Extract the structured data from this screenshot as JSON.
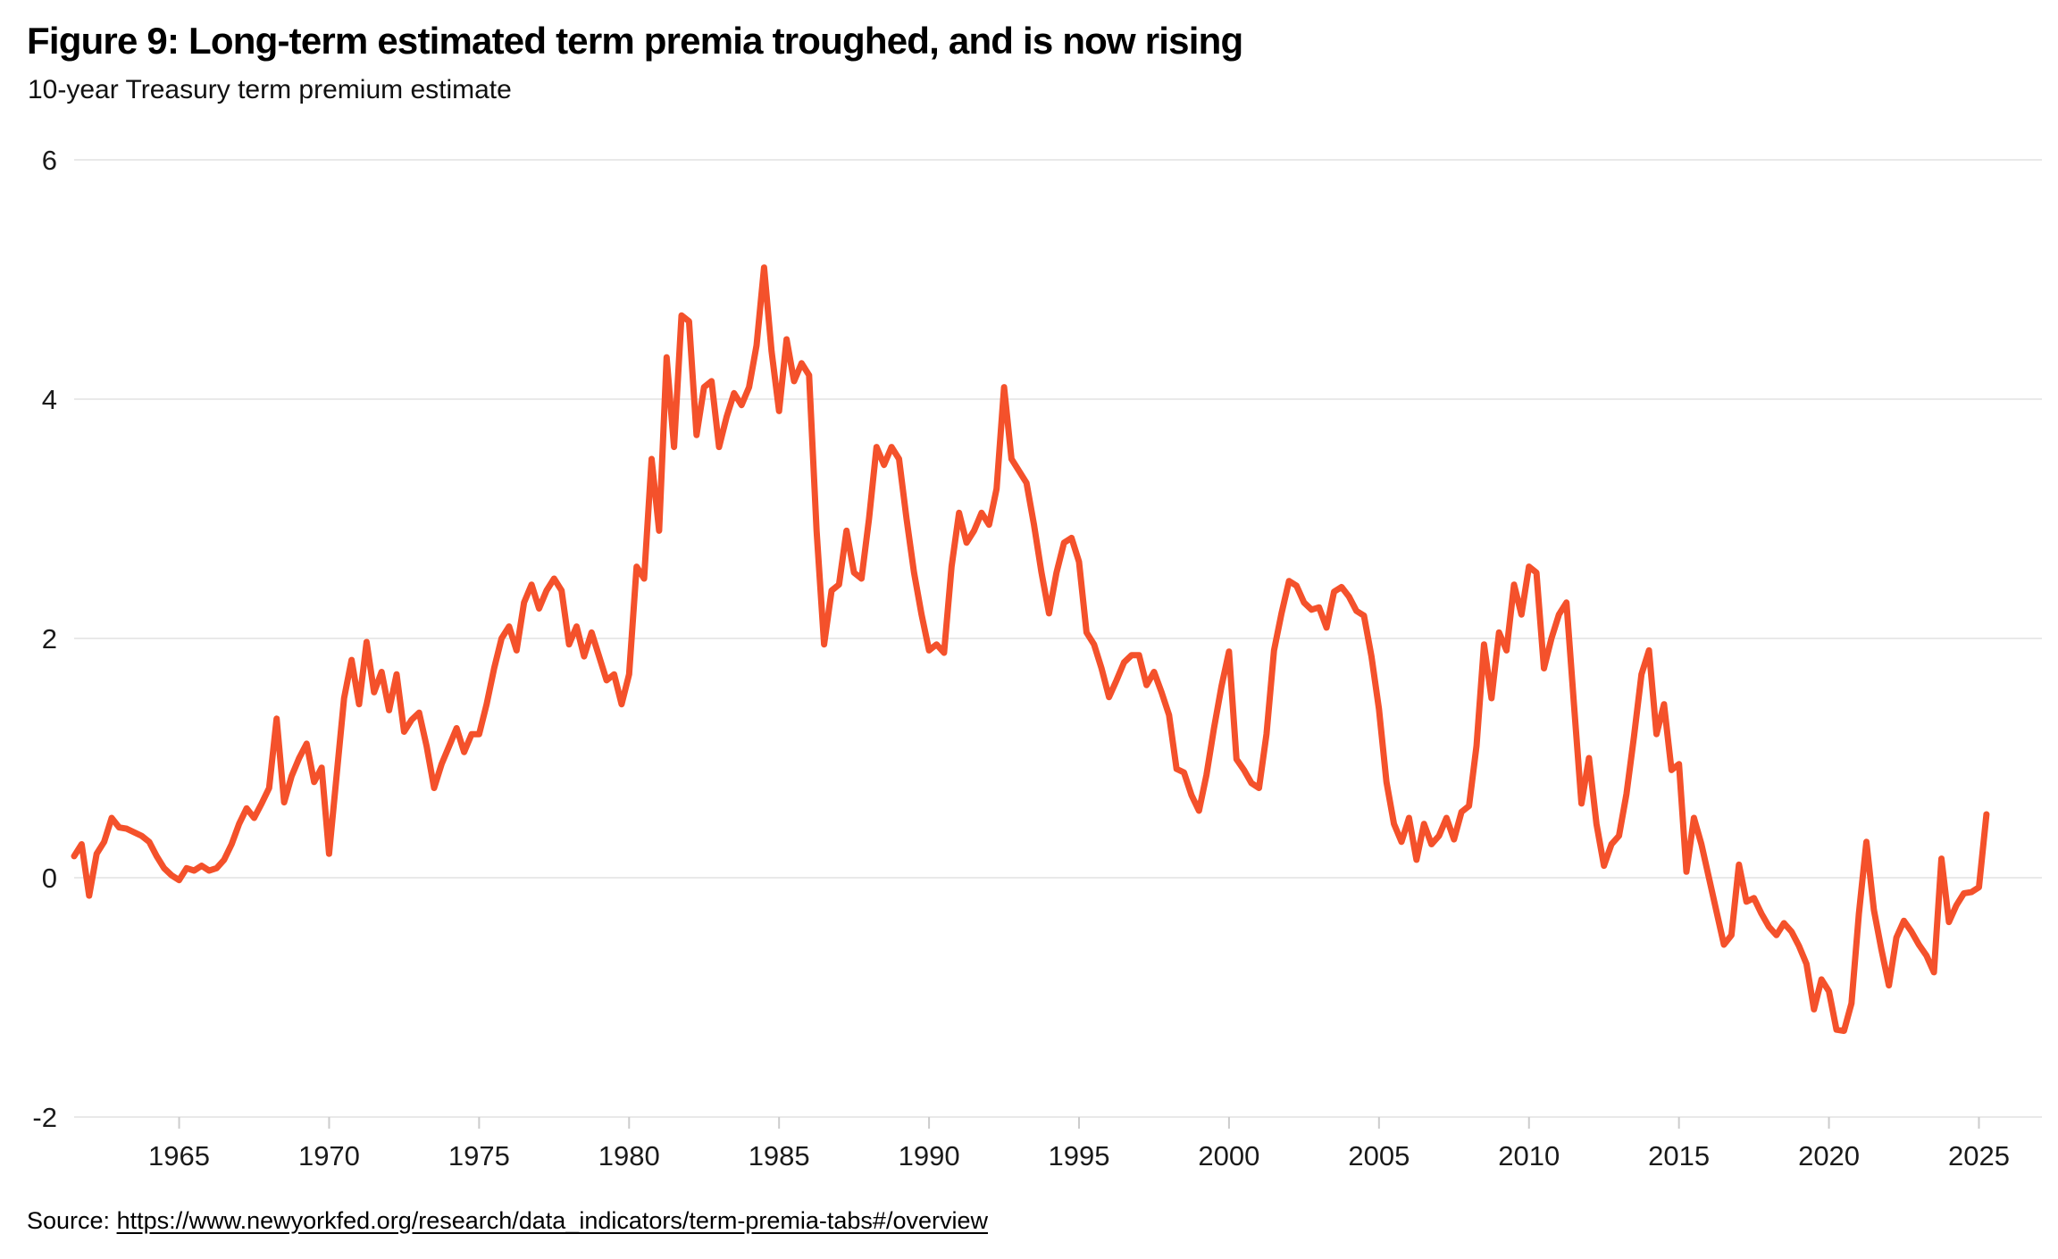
{
  "header": {
    "title": "Figure 9: Long-term estimated term premia troughed, and is now rising",
    "subtitle": "10-year Treasury term premium estimate"
  },
  "source": {
    "prefix": "Source: ",
    "link_text": "https://www.newyorkfed.org/research/data_indicators/term-premia-tabs#/overview",
    "href": "https://www.newyorkfed.org/research/data_indicators/term-premia-tabs#/overview"
  },
  "chart_data": {
    "type": "line",
    "title": "Figure 9: Long-term estimated term premia troughed, and is now rising",
    "subtitle": "10-year Treasury term premium estimate",
    "series_name": "10-year Treasury term premium estimate (percent)",
    "line_color": "#f4512b",
    "grid": "horizontal-only",
    "legend": "none",
    "xlim": [
      1961.5,
      2027.1
    ],
    "ylim": [
      -2,
      6
    ],
    "x_ticks": [
      1965,
      1970,
      1975,
      1980,
      1985,
      1990,
      1995,
      2000,
      2005,
      2010,
      2015,
      2020,
      2025
    ],
    "y_ticks": [
      -2,
      0,
      2,
      4,
      6
    ],
    "x_start": 1961.5,
    "x_step": 0.25,
    "values": [
      0.18,
      0.28,
      -0.15,
      0.2,
      0.3,
      0.5,
      0.42,
      0.41,
      0.38,
      0.35,
      0.3,
      0.18,
      0.08,
      0.02,
      -0.02,
      0.08,
      0.06,
      0.1,
      0.06,
      0.08,
      0.15,
      0.28,
      0.45,
      0.58,
      0.5,
      0.62,
      0.75,
      1.33,
      0.63,
      0.85,
      1.0,
      1.12,
      0.8,
      0.92,
      0.2,
      0.85,
      1.5,
      1.82,
      1.45,
      1.97,
      1.55,
      1.72,
      1.4,
      1.7,
      1.22,
      1.32,
      1.38,
      1.1,
      0.75,
      0.95,
      1.1,
      1.25,
      1.05,
      1.2,
      1.2,
      1.45,
      1.75,
      2.0,
      2.1,
      1.9,
      2.3,
      2.45,
      2.25,
      2.4,
      2.5,
      2.4,
      1.95,
      2.1,
      1.85,
      2.05,
      1.85,
      1.65,
      1.7,
      1.45,
      1.7,
      2.6,
      2.5,
      3.5,
      2.9,
      4.35,
      3.6,
      4.7,
      4.65,
      3.7,
      4.1,
      4.15,
      3.6,
      3.85,
      4.05,
      3.95,
      4.1,
      4.45,
      5.1,
      4.4,
      3.9,
      4.5,
      4.15,
      4.3,
      4.2,
      2.9,
      1.95,
      2.4,
      2.45,
      2.9,
      2.55,
      2.5,
      3.0,
      3.6,
      3.45,
      3.6,
      3.5,
      3.0,
      2.55,
      2.2,
      1.9,
      1.95,
      1.88,
      2.6,
      3.05,
      2.8,
      2.9,
      3.05,
      2.95,
      3.25,
      4.1,
      3.5,
      3.4,
      3.3,
      2.95,
      2.55,
      2.21,
      2.55,
      2.8,
      2.84,
      2.64,
      2.05,
      1.95,
      1.75,
      1.51,
      1.65,
      1.8,
      1.86,
      1.86,
      1.61,
      1.72,
      1.55,
      1.36,
      0.91,
      0.88,
      0.69,
      0.56,
      0.86,
      1.25,
      1.6,
      1.89,
      0.99,
      0.9,
      0.79,
      0.75,
      1.2,
      1.9,
      2.21,
      2.48,
      2.44,
      2.3,
      2.24,
      2.26,
      2.09,
      2.39,
      2.43,
      2.35,
      2.23,
      2.19,
      1.85,
      1.41,
      0.8,
      0.45,
      0.3,
      0.5,
      0.15,
      0.45,
      0.28,
      0.35,
      0.5,
      0.32,
      0.55,
      0.6,
      1.1,
      1.95,
      1.5,
      2.05,
      1.9,
      2.45,
      2.2,
      2.6,
      2.55,
      1.75,
      2.0,
      2.2,
      2.3,
      1.45,
      0.62,
      1.0,
      0.45,
      0.1,
      0.28,
      0.35,
      0.7,
      1.18,
      1.7,
      1.9,
      1.2,
      1.45,
      0.9,
      0.95,
      0.05,
      0.5,
      0.28,
      0.0,
      -0.28,
      -0.56,
      -0.48,
      0.11,
      -0.2,
      -0.17,
      -0.3,
      -0.41,
      -0.48,
      -0.38,
      -0.45,
      -0.57,
      -0.72,
      -1.1,
      -0.85,
      -0.95,
      -1.27,
      -1.28,
      -1.05,
      -0.3,
      0.3,
      -0.27,
      -0.6,
      -0.9,
      -0.5,
      -0.36,
      -0.45,
      -0.56,
      -0.65,
      -0.79,
      0.16,
      -0.37,
      -0.23,
      -0.13,
      -0.12,
      -0.08,
      0.53
    ]
  }
}
